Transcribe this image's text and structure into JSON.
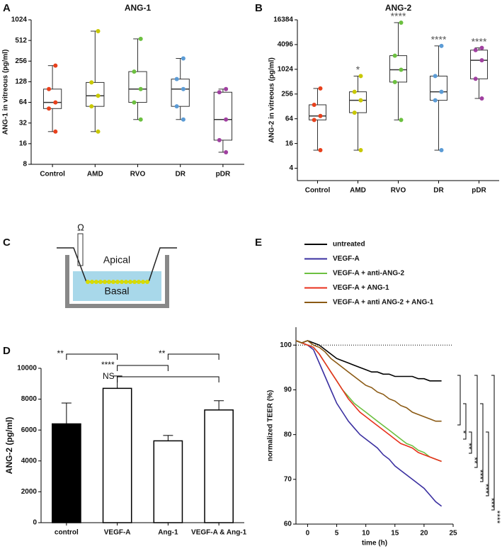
{
  "chart_data": [
    {
      "panel": "A",
      "type": "box",
      "title": "ANG-1",
      "ylabel": "ANG-1 in vitreous (pg/ml)",
      "yscale": "log",
      "ylim": [
        8,
        1024
      ],
      "yticks": [
        8,
        16,
        32,
        64,
        128,
        256,
        512,
        1024
      ],
      "categories": [
        "Control",
        "AMD",
        "RVO",
        "DR",
        "pDR"
      ],
      "colors": [
        "#e8401c",
        "#c8c800",
        "#6cc040",
        "#5b9bd5",
        "#a040a0"
      ],
      "boxes": [
        {
          "min": 24,
          "q1": 52,
          "median": 64,
          "q3": 100,
          "max": 220
        },
        {
          "min": 24,
          "q1": 56,
          "median": 80,
          "q3": 125,
          "max": 700
        },
        {
          "min": 36,
          "q1": 64,
          "median": 100,
          "q3": 180,
          "max": 540
        },
        {
          "min": 36,
          "q1": 56,
          "median": 100,
          "q3": 140,
          "max": 280
        },
        {
          "min": 12,
          "q1": 18,
          "median": 36,
          "q3": 90,
          "max": 100
        }
      ]
    },
    {
      "panel": "B",
      "type": "box",
      "title": "ANG-2",
      "ylabel": "ANG-2 in vitreous (pg/ml)",
      "yscale": "log",
      "ylim": [
        2,
        16384
      ],
      "yticks": [
        4,
        16,
        64,
        256,
        1024,
        4096,
        16384
      ],
      "categories": [
        "Control",
        "AMD",
        "RVO",
        "DR",
        "pDR"
      ],
      "colors": [
        "#e8401c",
        "#c8c800",
        "#6cc040",
        "#5b9bd5",
        "#a040a0"
      ],
      "annotations": [
        null,
        "*",
        "****",
        "****",
        "****"
      ],
      "boxes": [
        {
          "min": 11,
          "q1": 60,
          "median": 75,
          "q3": 140,
          "max": 350
        },
        {
          "min": 11,
          "q1": 90,
          "median": 180,
          "q3": 290,
          "max": 700
        },
        {
          "min": 60,
          "q1": 500,
          "median": 1000,
          "q3": 2200,
          "max": 14000
        },
        {
          "min": 11,
          "q1": 180,
          "median": 290,
          "q3": 700,
          "max": 3800
        },
        {
          "min": 200,
          "q1": 600,
          "median": 1700,
          "q3": 3000,
          "max": 3400
        }
      ]
    },
    {
      "panel": "D",
      "type": "bar",
      "ylabel": "ANG-2 (pg/ml)",
      "ylim": [
        0,
        10000
      ],
      "yticks": [
        0,
        2000,
        4000,
        6000,
        8000,
        10000
      ],
      "categories": [
        "control",
        "VEGF-A",
        "Ang-1",
        "VEGF-A & Ang-1"
      ],
      "values": [
        6400,
        8700,
        5300,
        7300
      ],
      "errors": [
        1350,
        800,
        350,
        600
      ],
      "colors": [
        "#000000",
        "#ffffff",
        "#ffffff",
        "#ffffff"
      ],
      "comparisons": [
        {
          "pair": [
            0,
            1
          ],
          "label": "**"
        },
        {
          "pair": [
            2,
            3
          ],
          "label": "**"
        },
        {
          "pair": [
            1,
            2
          ],
          "label": "****"
        },
        {
          "pair": [
            1,
            3
          ],
          "label": "NS"
        }
      ]
    },
    {
      "panel": "E",
      "type": "line",
      "xlabel": "time (h)",
      "ylabel": "normalized TEER (%)",
      "xlim": [
        -2,
        25
      ],
      "xticks": [
        0,
        5,
        10,
        15,
        20,
        25
      ],
      "ylim": [
        60,
        104
      ],
      "yticks": [
        60,
        70,
        80,
        90,
        100
      ],
      "hline": 100,
      "x": [
        -2,
        -1,
        0,
        1,
        2,
        3,
        4,
        5,
        6,
        7,
        8,
        9,
        10,
        11,
        12,
        13,
        14,
        15,
        16,
        17,
        18,
        19,
        20,
        21,
        22,
        23
      ],
      "series": [
        {
          "name": "untreated",
          "color": "#000000",
          "values": [
            101,
            100.5,
            101,
            100.5,
            100,
            99,
            98,
            97,
            96.5,
            96,
            95.5,
            95,
            94.5,
            94,
            94,
            93.5,
            93.5,
            93,
            93,
            93,
            93,
            92.5,
            92.5,
            92,
            92,
            92
          ]
        },
        {
          "name": "VEGF-A",
          "color": "#3a2fa0",
          "values": [
            101,
            100.5,
            100,
            99,
            96,
            93,
            90,
            87,
            85,
            83,
            81.5,
            80,
            79,
            78,
            77,
            75.5,
            74.5,
            73,
            72,
            71,
            70,
            69,
            68,
            66.5,
            65,
            64
          ]
        },
        {
          "name": "VEGF-A + anti-ANG-2",
          "color": "#6cc040",
          "values": [
            101,
            100.5,
            100,
            99.5,
            98,
            96,
            94,
            92,
            90,
            88.5,
            87,
            86,
            85,
            84,
            83,
            82,
            81,
            80,
            79,
            78,
            77.5,
            76.5,
            76,
            75,
            74.5,
            74
          ]
        },
        {
          "name": "VEGF-A + ANG-1",
          "color": "#e8301c",
          "values": [
            101,
            100.5,
            100,
            99.5,
            98,
            96,
            94,
            92,
            90,
            88,
            86.5,
            85,
            84,
            83,
            82,
            81,
            80,
            79,
            78,
            77.5,
            77,
            76,
            75.5,
            75,
            74.5,
            74
          ]
        },
        {
          "name": "VEGF-A + anti ANG-2  + ANG-1",
          "color": "#8b5a14",
          "values": [
            101,
            100.5,
            101,
            100,
            99.5,
            98.5,
            97,
            96,
            95,
            94,
            93,
            92,
            91,
            90.5,
            89.5,
            89,
            88,
            87.5,
            86.5,
            86,
            85,
            84.5,
            84,
            83.5,
            83,
            83
          ]
        }
      ],
      "annotations": [
        "*",
        "**",
        "**",
        "***",
        "***",
        "***",
        "****"
      ]
    }
  ],
  "diagram": {
    "panel": "C",
    "symbol": "Ω",
    "labels": [
      "Apical",
      "Basal"
    ]
  }
}
